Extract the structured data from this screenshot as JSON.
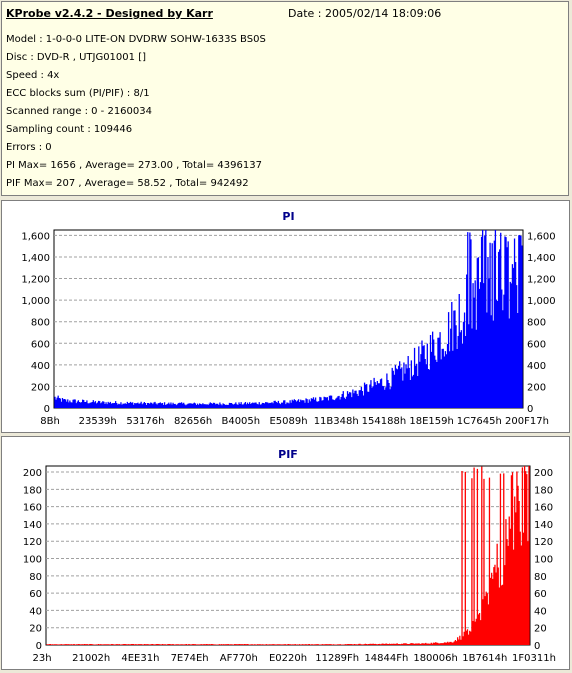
{
  "header": {
    "title": "KProbe v2.4.2 - Designed by Karr",
    "date": "Date : 2005/02/14 18:09:06"
  },
  "info_lines": [
    "Model : 1-0-0-0 LITE-ON DVDRW SOHW-1633S BS0S",
    "Disc : DVD-R , UTJG01001 []",
    "Speed : 4x",
    "ECC blocks sum (PI/PIF) : 8/1",
    "Scanned range : 0 - 2160034",
    "Sampling count : 109446",
    "Errors : 0",
    "PI Max= 1656 , Average= 273.00 , Total= 4396137",
    "PIF Max= 207 , Average= 58.52 , Total= 942492"
  ],
  "chart_data": [
    {
      "type": "bar",
      "title": "PI",
      "color": "#0000ff",
      "title_color": "#00008b",
      "ylim": [
        0,
        1650
      ],
      "yticks": [
        0,
        200,
        400,
        600,
        800,
        1000,
        1200,
        1400,
        1600
      ],
      "ytick_labels": [
        "0",
        "200",
        "400",
        "600",
        "800",
        "1,000",
        "1,200",
        "1,400",
        "1,600"
      ],
      "xtick_labels": [
        "8Bh",
        "23539h",
        "53176h",
        "82656h",
        "B4005h",
        "E5089h",
        "11B348h",
        "154188h",
        "18E159h",
        "1C7645h",
        "200F17h"
      ],
      "grid": "horizontal-dashed",
      "profile": [
        [
          0,
          110
        ],
        [
          0.02,
          80
        ],
        [
          0.1,
          60
        ],
        [
          0.2,
          50
        ],
        [
          0.3,
          45
        ],
        [
          0.4,
          48
        ],
        [
          0.5,
          65
        ],
        [
          0.58,
          100
        ],
        [
          0.65,
          180
        ],
        [
          0.72,
          320
        ],
        [
          0.78,
          520
        ],
        [
          0.84,
          820
        ],
        [
          0.89,
          1200
        ],
        [
          0.93,
          1450
        ],
        [
          0.97,
          1500
        ],
        [
          1.0,
          1480
        ]
      ],
      "peak_max": 1656
    },
    {
      "type": "bar",
      "title": "PIF",
      "color": "#ff0000",
      "title_color": "#00008b",
      "ylim": [
        0,
        207
      ],
      "yticks": [
        0,
        20,
        40,
        60,
        80,
        100,
        120,
        140,
        160,
        180,
        200
      ],
      "ytick_labels": [
        "0",
        "20",
        "40",
        "60",
        "80",
        "100",
        "120",
        "140",
        "160",
        "180",
        "200"
      ],
      "xtick_labels": [
        "23h",
        "21002h",
        "4EE31h",
        "7E74Eh",
        "AF770h",
        "E0220h",
        "11289Fh",
        "14844Fh",
        "180006h",
        "1B7614h",
        "1F0311h"
      ],
      "grid": "horizontal-dashed",
      "profile": [
        [
          0,
          1
        ],
        [
          0.2,
          1
        ],
        [
          0.4,
          1
        ],
        [
          0.6,
          1
        ],
        [
          0.78,
          2
        ],
        [
          0.84,
          4
        ],
        [
          0.87,
          15
        ],
        [
          0.9,
          50
        ],
        [
          0.93,
          100
        ],
        [
          0.96,
          150
        ],
        [
          0.98,
          185
        ],
        [
          1.0,
          195
        ]
      ],
      "peak_max": 207
    }
  ]
}
